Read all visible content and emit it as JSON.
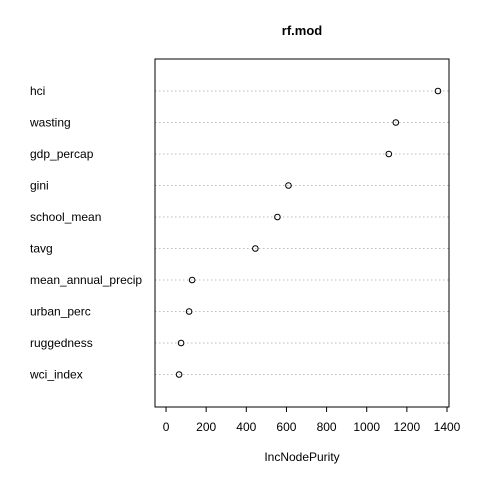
{
  "chart_data": {
    "type": "scatter",
    "title": "rf.mod",
    "xlabel": "IncNodePurity",
    "ylabel": "",
    "xlim": [
      -55,
      1410
    ],
    "x_ticks": [
      0,
      200,
      400,
      600,
      800,
      1000,
      1200,
      1400
    ],
    "categories": [
      "hci",
      "wasting",
      "gdp_percap",
      "gini",
      "school_mean",
      "tavg",
      "mean_annual_precip",
      "urban_perc",
      "ruggedness",
      "wci_index"
    ],
    "values": [
      1355,
      1145,
      1110,
      610,
      555,
      445,
      130,
      115,
      75,
      65
    ],
    "grid": "dotted horizontal lines at each variable",
    "marker": "open circle",
    "colors": {
      "frame": "#000000",
      "grid": "#bebebe",
      "marker": "#000000",
      "background": "#ffffff"
    }
  }
}
